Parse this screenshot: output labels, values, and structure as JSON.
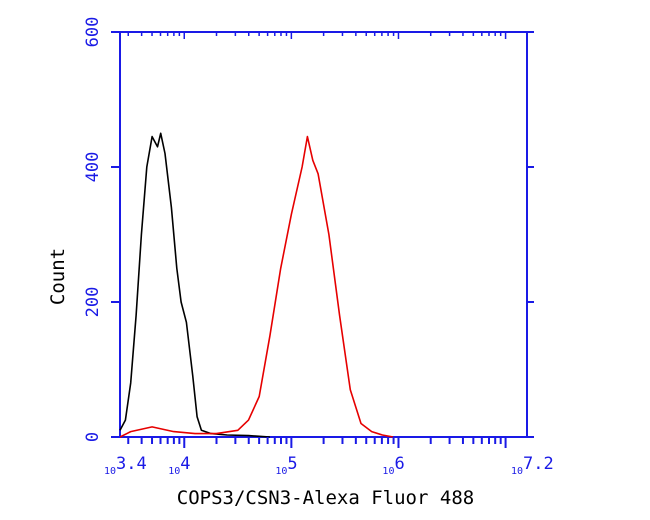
{
  "chart_data": {
    "type": "line",
    "title": "",
    "xlabel": "COPS3/CSN3-Alexa Fluor 488",
    "ylabel": "Count",
    "x_scale": "log",
    "xlim": [
      3.4,
      7.2
    ],
    "ylim": [
      0,
      600
    ],
    "y_ticks": [
      0,
      200,
      400,
      600
    ],
    "y_tick_labels": [
      "0",
      "200",
      "400",
      "600"
    ],
    "x_tick_labels": [
      {
        "value": 3.4,
        "base": "10",
        "exp": "3.4"
      },
      {
        "value": 4,
        "base": "10",
        "exp": "4"
      },
      {
        "value": 5,
        "base": "10",
        "exp": "5"
      },
      {
        "value": 6,
        "base": "10",
        "exp": "6"
      },
      {
        "value": 7.2,
        "base": "10",
        "exp": "7.2"
      }
    ],
    "axis_color": "#1a1ae6",
    "grid": false,
    "legend": "none",
    "series": [
      {
        "color": "#000000",
        "points": [
          [
            3.4,
            10
          ],
          [
            3.45,
            25
          ],
          [
            3.5,
            80
          ],
          [
            3.55,
            180
          ],
          [
            3.6,
            300
          ],
          [
            3.65,
            400
          ],
          [
            3.7,
            445
          ],
          [
            3.75,
            430
          ],
          [
            3.78,
            450
          ],
          [
            3.82,
            420
          ],
          [
            3.88,
            340
          ],
          [
            3.93,
            250
          ],
          [
            3.97,
            200
          ],
          [
            4.02,
            170
          ],
          [
            4.08,
            90
          ],
          [
            4.12,
            30
          ],
          [
            4.16,
            10
          ],
          [
            4.25,
            5
          ],
          [
            4.4,
            3
          ],
          [
            4.6,
            2
          ],
          [
            4.8,
            0
          ]
        ]
      },
      {
        "color": "#e60000",
        "points": [
          [
            3.4,
            0
          ],
          [
            3.5,
            8
          ],
          [
            3.7,
            15
          ],
          [
            3.9,
            8
          ],
          [
            4.1,
            5
          ],
          [
            4.3,
            5
          ],
          [
            4.5,
            10
          ],
          [
            4.6,
            25
          ],
          [
            4.7,
            60
          ],
          [
            4.8,
            150
          ],
          [
            4.9,
            250
          ],
          [
            5.0,
            330
          ],
          [
            5.1,
            400
          ],
          [
            5.15,
            445
          ],
          [
            5.2,
            410
          ],
          [
            5.25,
            390
          ],
          [
            5.35,
            300
          ],
          [
            5.45,
            180
          ],
          [
            5.55,
            70
          ],
          [
            5.65,
            20
          ],
          [
            5.75,
            8
          ],
          [
            5.85,
            3
          ],
          [
            5.95,
            0
          ]
        ]
      }
    ]
  }
}
